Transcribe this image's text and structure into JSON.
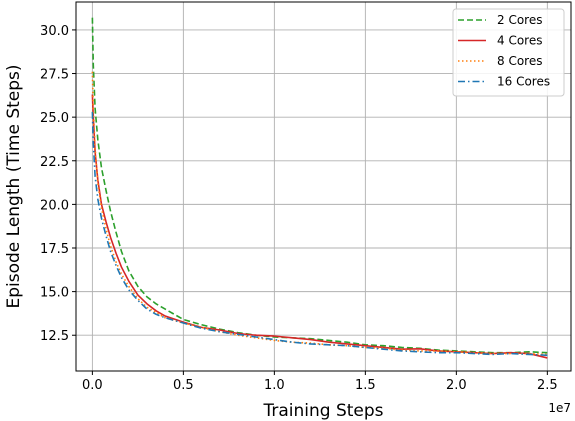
{
  "chart_data": {
    "type": "line",
    "xlabel": "Training Steps",
    "ylabel": "Episode Length (Time Steps)",
    "x_offset_label": "1e7",
    "x_scale": 10000000,
    "xlim": [
      -900000,
      26300000
    ],
    "ylim": [
      10.45,
      31.6
    ],
    "x_ticks": [
      0,
      5000000,
      10000000,
      15000000,
      20000000,
      25000000
    ],
    "x_tick_labels": [
      "0.0",
      "0.5",
      "1.0",
      "1.5",
      "2.0",
      "2.5"
    ],
    "y_ticks": [
      12.5,
      15.0,
      17.5,
      20.0,
      22.5,
      25.0,
      27.5,
      30.0
    ],
    "y_tick_labels": [
      "12.5",
      "15.0",
      "17.5",
      "20.0",
      "22.5",
      "25.0",
      "27.5",
      "30.0"
    ],
    "grid": true,
    "legend_position": "top-right",
    "series": [
      {
        "name": "2 Cores",
        "color": "#2ca02c",
        "style": "dashed",
        "x": [
          0,
          50000,
          150000,
          300000,
          500000,
          750000,
          1000000,
          1300000,
          1600000,
          2000000,
          2500000,
          3000000,
          3500000,
          4000000,
          5000000,
          6000000,
          7000000,
          8000000,
          9000000,
          10000000,
          11000000,
          12000000,
          13000000,
          14000000,
          15000000,
          16000000,
          17000000,
          18000000,
          19000000,
          20000000,
          21000000,
          22000000,
          23000000,
          24000000,
          25000000
        ],
        "y": [
          30.7,
          28.0,
          25.5,
          23.7,
          22.1,
          20.8,
          19.6,
          18.4,
          17.3,
          16.2,
          15.3,
          14.7,
          14.3,
          14.0,
          13.4,
          13.1,
          12.85,
          12.65,
          12.5,
          12.4,
          12.35,
          12.3,
          12.2,
          12.1,
          11.95,
          11.9,
          11.8,
          11.75,
          11.65,
          11.6,
          11.55,
          11.5,
          11.5,
          11.55,
          11.5
        ]
      },
      {
        "name": "4 Cores",
        "color": "#d62728",
        "style": "solid",
        "x": [
          0,
          50000,
          150000,
          300000,
          500000,
          750000,
          1000000,
          1300000,
          1600000,
          2000000,
          2500000,
          3000000,
          3500000,
          4000000,
          5000000,
          6000000,
          7000000,
          8000000,
          9000000,
          10000000,
          11000000,
          12000000,
          13000000,
          14000000,
          15000000,
          16000000,
          17000000,
          18000000,
          19000000,
          20000000,
          21000000,
          22000000,
          23000000,
          24000000,
          25000000
        ],
        "y": [
          26.3,
          25.0,
          23.0,
          21.4,
          20.0,
          19.0,
          18.1,
          17.2,
          16.4,
          15.6,
          14.8,
          14.3,
          13.9,
          13.6,
          13.25,
          12.95,
          12.8,
          12.6,
          12.5,
          12.45,
          12.35,
          12.25,
          12.1,
          12.0,
          11.9,
          11.8,
          11.7,
          11.72,
          11.6,
          11.55,
          11.5,
          11.45,
          11.5,
          11.45,
          11.2
        ]
      },
      {
        "name": "8 Cores",
        "color": "#ff7f0e",
        "style": "dotted",
        "x": [
          0,
          50000,
          150000,
          300000,
          500000,
          750000,
          1000000,
          1300000,
          1600000,
          2000000,
          2500000,
          3000000,
          3500000,
          4000000,
          5000000,
          6000000,
          7000000,
          8000000,
          9000000,
          10000000,
          11000000,
          12000000,
          13000000,
          14000000,
          15000000,
          16000000,
          17000000,
          18000000,
          19000000,
          20000000,
          21000000,
          22000000,
          23000000,
          24000000,
          25000000
        ],
        "y": [
          27.6,
          25.5,
          23.2,
          21.2,
          19.8,
          18.6,
          17.6,
          16.7,
          16.0,
          15.3,
          14.6,
          14.1,
          13.8,
          13.5,
          13.2,
          12.95,
          12.7,
          12.5,
          12.35,
          12.2,
          12.1,
          12.05,
          11.95,
          11.9,
          11.8,
          11.75,
          11.65,
          11.6,
          11.6,
          11.55,
          11.5,
          11.45,
          11.45,
          11.45,
          11.4
        ]
      },
      {
        "name": "16 Cores",
        "color": "#1f77b4",
        "style": "dashdot",
        "x": [
          0,
          50000,
          150000,
          300000,
          500000,
          750000,
          1000000,
          1300000,
          1600000,
          2000000,
          2500000,
          3000000,
          3500000,
          4000000,
          5000000,
          6000000,
          7000000,
          8000000,
          9000000,
          10000000,
          11000000,
          12000000,
          13000000,
          14000000,
          15000000,
          16000000,
          17000000,
          18000000,
          19000000,
          20000000,
          21000000,
          22000000,
          23000000,
          24000000,
          25000000
        ],
        "y": [
          25.3,
          23.5,
          21.6,
          20.3,
          19.2,
          18.2,
          17.3,
          16.5,
          15.8,
          15.1,
          14.5,
          14.0,
          13.7,
          13.5,
          13.2,
          12.9,
          12.7,
          12.55,
          12.4,
          12.25,
          12.1,
          12.0,
          11.95,
          11.9,
          11.8,
          11.7,
          11.6,
          11.55,
          11.5,
          11.5,
          11.45,
          11.4,
          11.45,
          11.4,
          11.35
        ]
      }
    ]
  }
}
